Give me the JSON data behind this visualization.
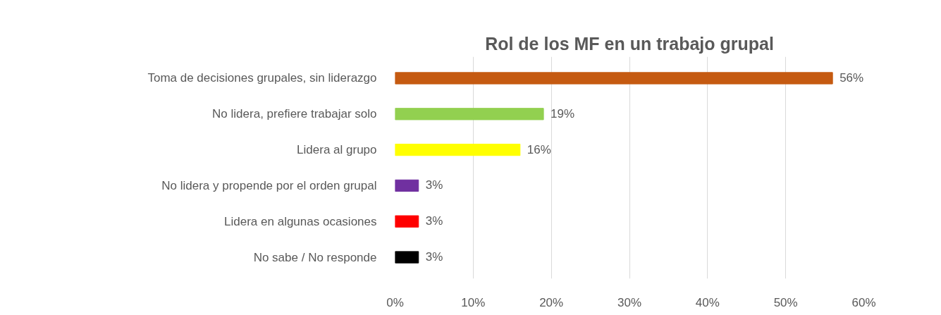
{
  "chart_data": {
    "type": "bar",
    "orientation": "horizontal",
    "title": "Rol de los MF en un trabajo grupal",
    "categories": [
      "Toma de decisiones grupales, sin liderazgo",
      "No lidera, prefiere trabajar solo",
      "Lidera al grupo",
      "No lidera y propende por el orden grupal",
      "Lidera en algunas ocasiones",
      "No sabe / No responde"
    ],
    "values": [
      56,
      19,
      16,
      3,
      3,
      3
    ],
    "colors": [
      "#c55a11",
      "#92d050",
      "#ffff00",
      "#7030a0",
      "#ff0000",
      "#000000"
    ],
    "value_labels": [
      "56%",
      "19%",
      "16%",
      "3%",
      "3%",
      "3%"
    ],
    "xlim": [
      0,
      60
    ],
    "xticks": [
      {
        "value": 0,
        "label": "0%"
      },
      {
        "value": 10,
        "label": "10%"
      },
      {
        "value": 20,
        "label": "20%"
      },
      {
        "value": 30,
        "label": "30%"
      },
      {
        "value": 40,
        "label": "40%"
      },
      {
        "value": 50,
        "label": "50%"
      },
      {
        "value": 60,
        "label": "60%"
      }
    ],
    "grid": "x"
  }
}
